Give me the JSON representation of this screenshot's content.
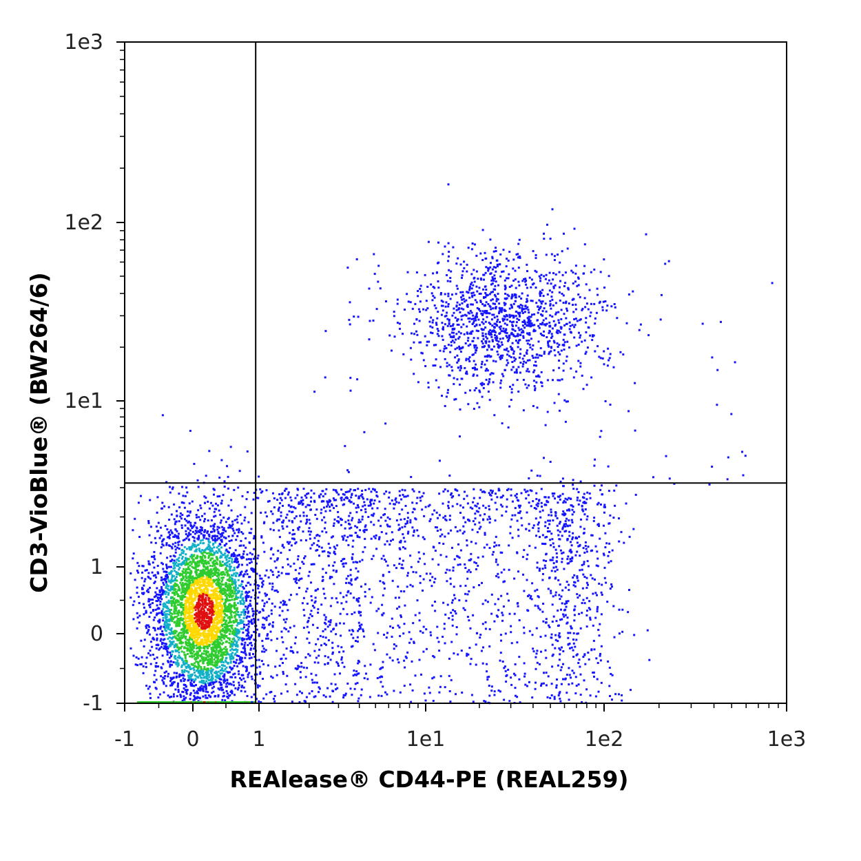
{
  "chart_data": {
    "type": "scatter",
    "subtype": "flow-cytometry-density-dot-plot",
    "xlabel": "REAlease® CD44-PE (REAL259)",
    "ylabel": "CD3-VioBlue® (BW264/6)",
    "x_scale": "biexponential (linear near 0, log above 1)",
    "y_scale": "biexponential (linear near 0, log above 1)",
    "xlim": [
      -1,
      1000
    ],
    "ylim": [
      -1,
      1000
    ],
    "x_ticks": [
      "-1",
      "0",
      "1",
      "1e1",
      "1e2",
      "1e3"
    ],
    "y_ticks": [
      "-1",
      "0",
      "1",
      "1e1",
      "1e2",
      "1e3"
    ],
    "grid": false,
    "legend": "none",
    "gates": {
      "x_threshold": 0.95,
      "y_threshold": 3.2
    },
    "colors": {
      "low": "#1515ff",
      "mid": "#2ecc2e",
      "high": "#ffd800",
      "peak": "#e01010",
      "gate": "#000000"
    },
    "populations": [
      {
        "name": "",
        "quadrant": "lower-left",
        "x_center": 0.15,
        "y_center": 0.35,
        "x_spread": 0.4,
        "y_spread": 0.7,
        "relative_density": "very high"
      },
      {
        "name": "",
        "quadrant": "lower-right",
        "x_center": 25,
        "y_center": 0.4,
        "x_range": [
          1,
          120
        ],
        "y_range": [
          -1,
          3
        ],
        "relative_density": "low"
      },
      {
        "name": "",
        "quadrant": "upper-right",
        "x_center": 28,
        "y_center": 28,
        "x_range": [
          6,
          150
        ],
        "y_range": [
          8,
          80
        ],
        "relative_density": "medium"
      }
    ]
  }
}
